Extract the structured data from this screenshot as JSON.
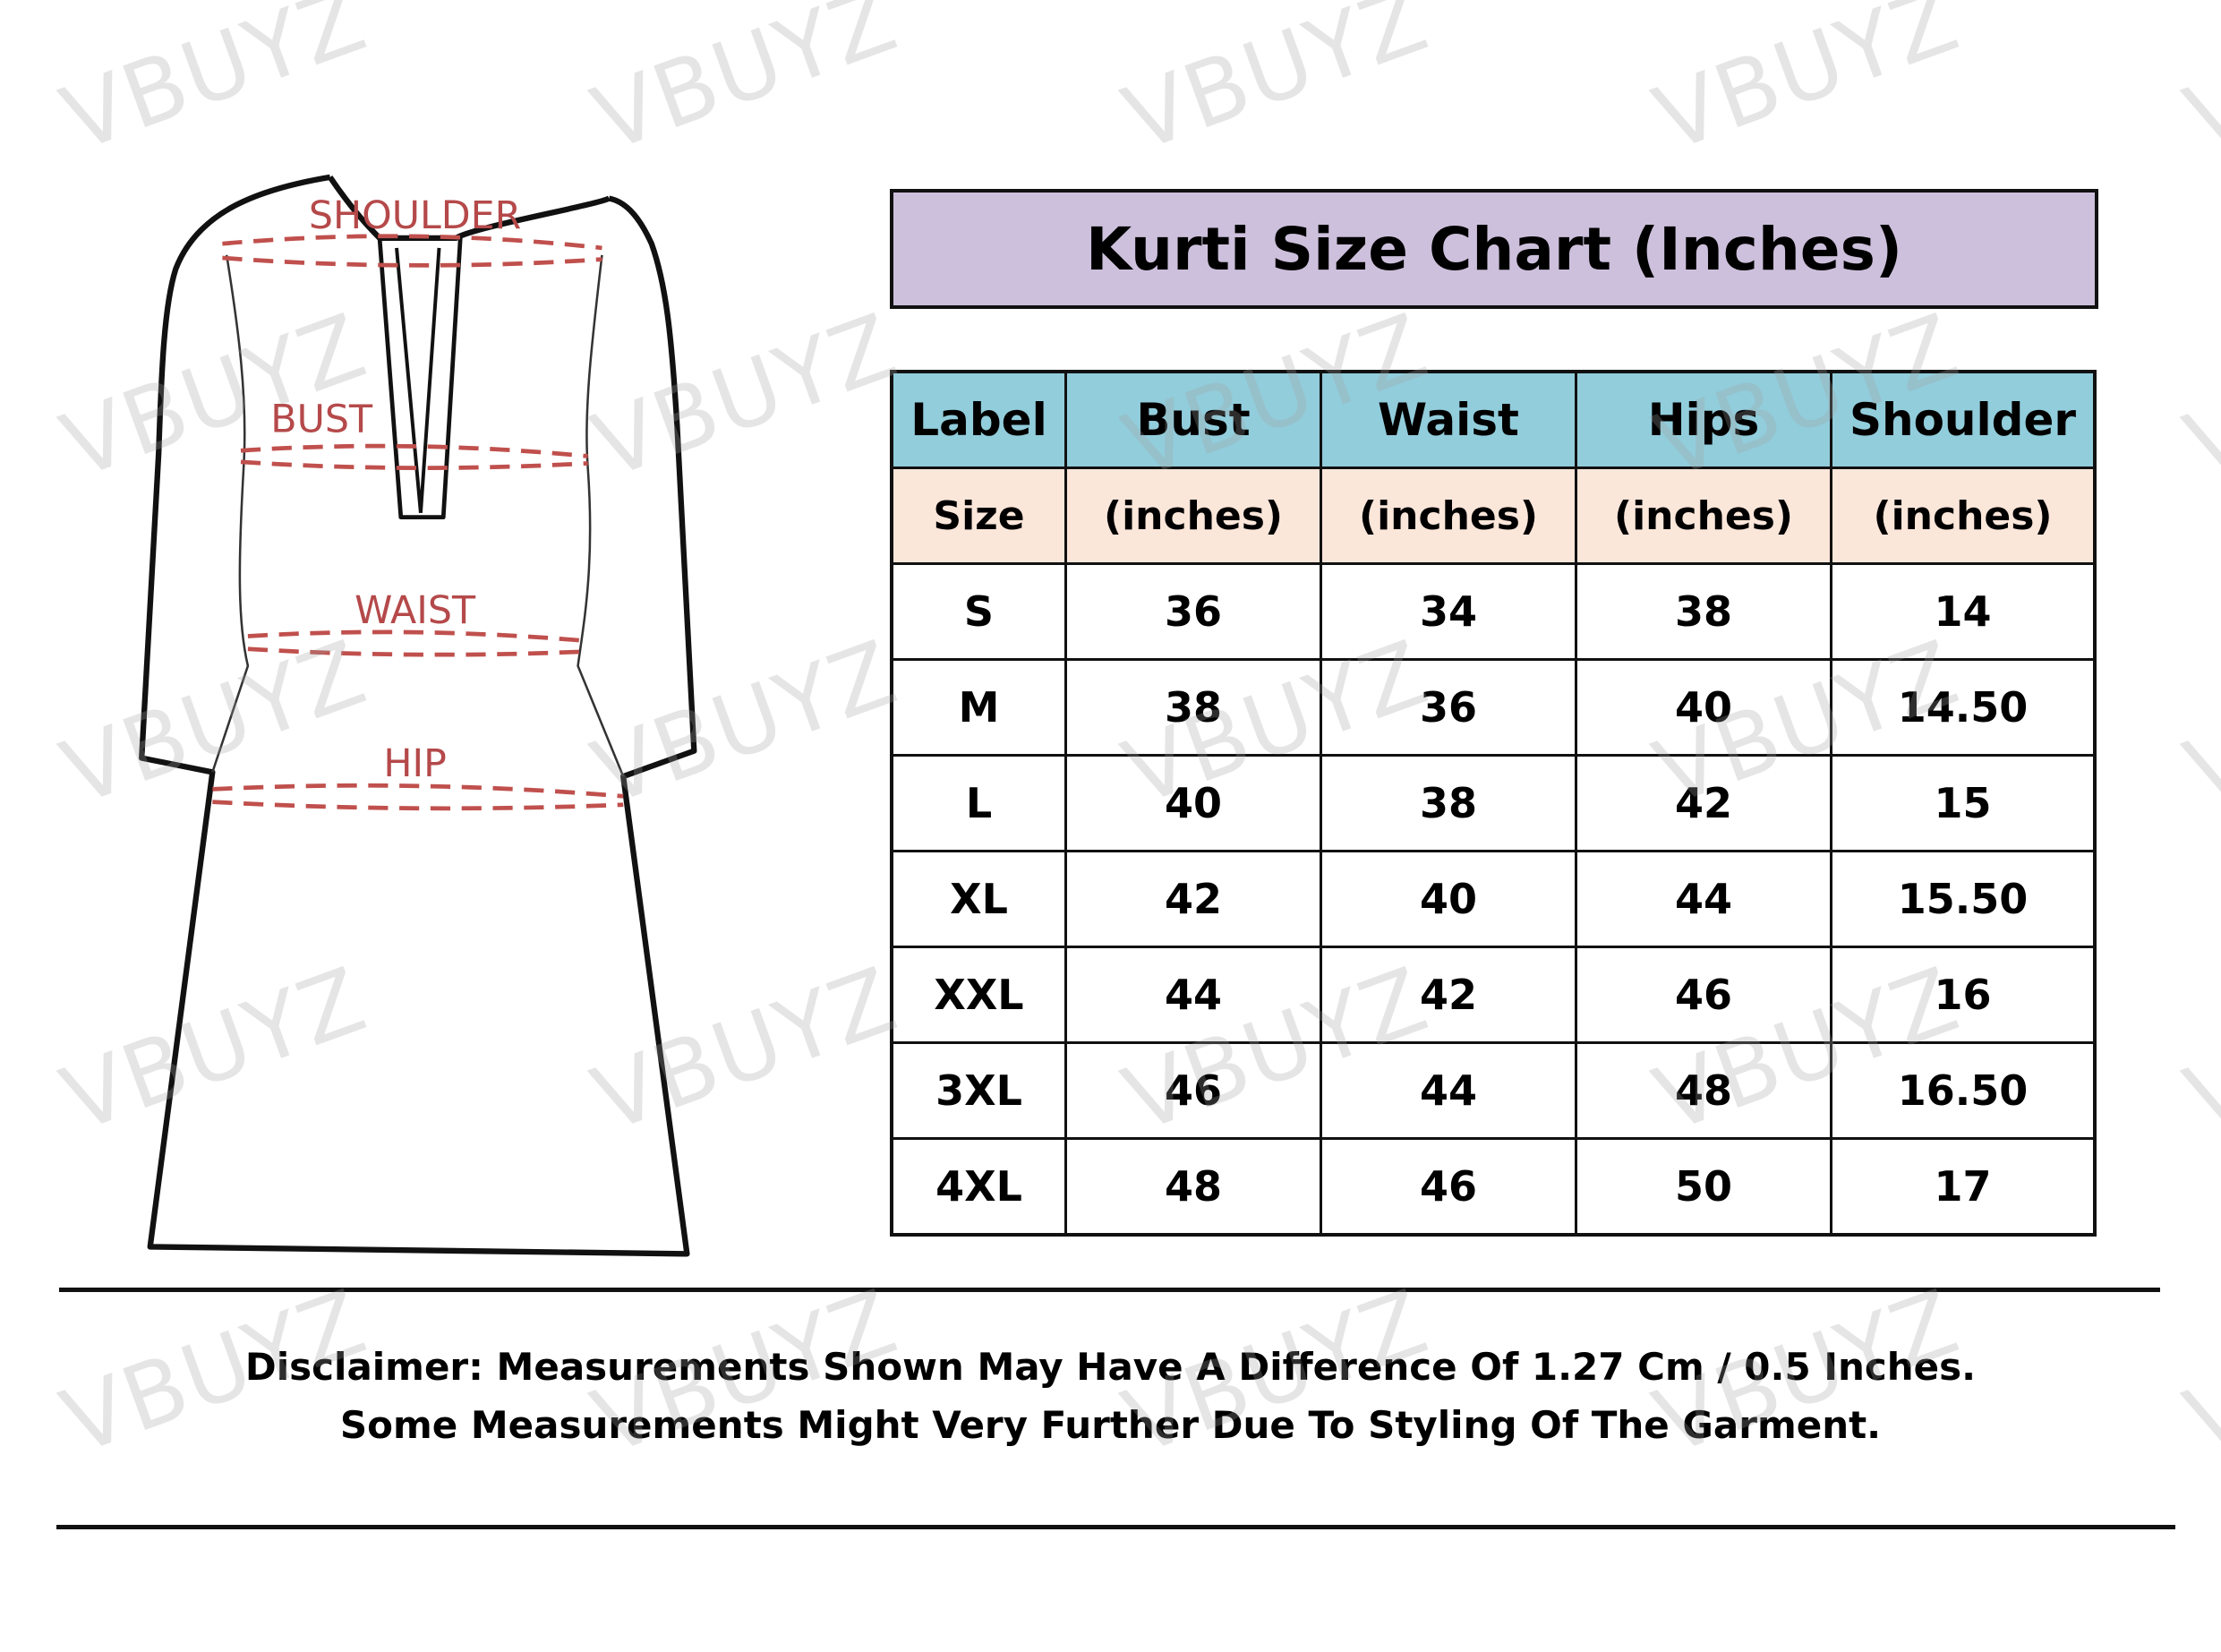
{
  "watermark": "VBUYZ",
  "diagram": {
    "labels": {
      "shoulder": "SHOULDER",
      "bust": "BUST",
      "waist": "WAIST",
      "hip": "HIP"
    },
    "measure_line_color": "#c0504d"
  },
  "title": "Kurti Size Chart (Inches)",
  "colors": {
    "title_bg": "#cdc0dc",
    "header_bg": "#92cddc",
    "subheader_bg": "#fbe6da"
  },
  "table": {
    "headers": [
      "Label",
      "Bust",
      "Waist",
      "Hips",
      "Shoulder"
    ],
    "subheaders": [
      "Size",
      "(inches)",
      "(inches)",
      "(inches)",
      "(inches)"
    ],
    "rows": [
      [
        "S",
        "36",
        "34",
        "38",
        "14"
      ],
      [
        "M",
        "38",
        "36",
        "40",
        "14.50"
      ],
      [
        "L",
        "40",
        "38",
        "42",
        "15"
      ],
      [
        "XL",
        "42",
        "40",
        "44",
        "15.50"
      ],
      [
        "XXL",
        "44",
        "42",
        "46",
        "16"
      ],
      [
        "3XL",
        "46",
        "44",
        "48",
        "16.50"
      ],
      [
        "4XL",
        "48",
        "46",
        "50",
        "17"
      ]
    ]
  },
  "disclaimer": {
    "line1": "Disclaimer: Measurements Shown May Have A Difference Of 1.27 Cm / 0.5 Inches.",
    "line2": "Some Measurements Might Very Further Due To Styling Of The Garment."
  }
}
